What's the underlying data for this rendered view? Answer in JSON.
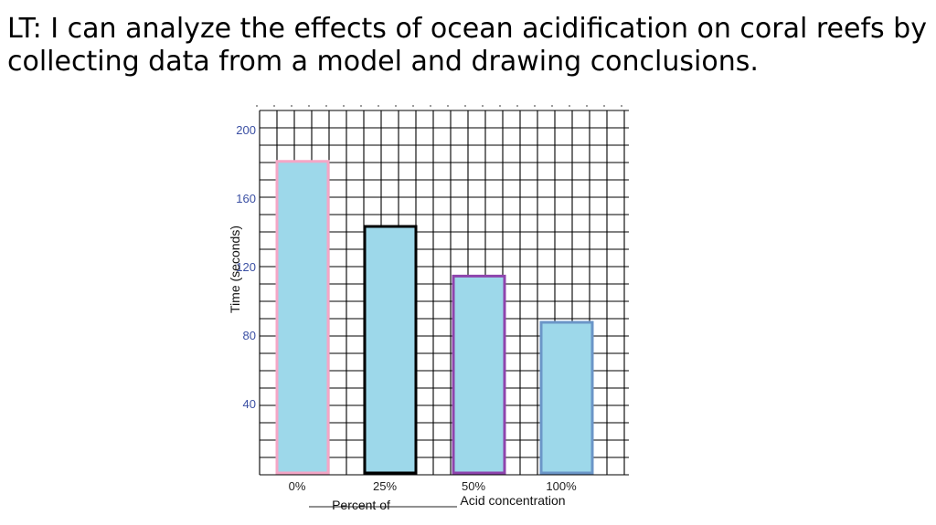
{
  "slide": {
    "title": "LT: I can analyze the effects of ocean acidification on coral reefs by collecting data from a model and drawing conclusions."
  },
  "chart_data": {
    "type": "bar",
    "categories": [
      "0%",
      "25%",
      "50%",
      "100%"
    ],
    "values": [
      182,
      144,
      115,
      88
    ],
    "ylabel": "Time (seconds)",
    "xlabel_left": "Percent of",
    "xlabel_right": "Acid concentration",
    "yticks": [
      40,
      80,
      120,
      160,
      200
    ],
    "ylim": [
      0,
      210
    ],
    "grid": true,
    "bar_fill": "#9dd8ea",
    "bar_outlines": [
      "#f4a6c6",
      "#000000",
      "#8e44ad",
      "#6b96c8"
    ]
  }
}
